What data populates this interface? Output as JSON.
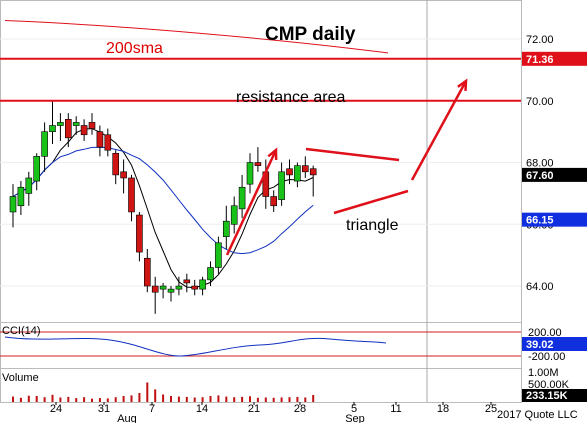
{
  "chart_data": {
    "type": "candlestick",
    "title": "CMP daily",
    "price_ylim": [
      62.9,
      73.2
    ],
    "price_ticks": [
      "72.00",
      "70.00",
      "68.00",
      "66.00",
      "64.00"
    ],
    "annotations": {
      "sma_label": "200sma",
      "resistance_label": "resistance area",
      "triangle_label": "triangle"
    },
    "resistance_levels": [
      71.36,
      70.0
    ],
    "last_price_badges": [
      {
        "value": "71.36",
        "color": "#e0101a"
      },
      {
        "value": "67.60",
        "color": "#000000"
      },
      {
        "value": "66.15",
        "color": "#1030e0"
      }
    ],
    "x_labels": [
      "24",
      "31",
      "7",
      "14",
      "21",
      "28",
      "5",
      "11",
      "18",
      "25"
    ],
    "month_labels": [
      "Aug",
      "Sep"
    ],
    "candles": [
      {
        "o": 66.4,
        "h": 67.3,
        "l": 65.9,
        "c": 66.9
      },
      {
        "o": 66.6,
        "h": 67.4,
        "l": 66.3,
        "c": 67.2
      },
      {
        "o": 67.0,
        "h": 67.7,
        "l": 66.6,
        "c": 67.5
      },
      {
        "o": 67.4,
        "h": 68.3,
        "l": 67.1,
        "c": 68.2
      },
      {
        "o": 68.2,
        "h": 69.3,
        "l": 67.7,
        "c": 69.0
      },
      {
        "o": 69.0,
        "h": 70.0,
        "l": 68.6,
        "c": 69.2
      },
      {
        "o": 69.2,
        "h": 69.6,
        "l": 68.7,
        "c": 69.3
      },
      {
        "o": 69.4,
        "h": 69.6,
        "l": 68.5,
        "c": 68.8
      },
      {
        "o": 69.2,
        "h": 69.5,
        "l": 68.9,
        "c": 69.3
      },
      {
        "o": 69.2,
        "h": 69.4,
        "l": 68.7,
        "c": 68.9
      },
      {
        "o": 69.3,
        "h": 69.6,
        "l": 68.9,
        "c": 69.1
      },
      {
        "o": 69.0,
        "h": 69.2,
        "l": 68.2,
        "c": 68.5
      },
      {
        "o": 68.9,
        "h": 69.1,
        "l": 68.2,
        "c": 68.4
      },
      {
        "o": 68.3,
        "h": 68.4,
        "l": 67.3,
        "c": 67.6
      },
      {
        "o": 67.7,
        "h": 68.1,
        "l": 67.0,
        "c": 67.5
      },
      {
        "o": 67.5,
        "h": 67.6,
        "l": 66.1,
        "c": 66.4
      },
      {
        "o": 66.3,
        "h": 66.4,
        "l": 64.8,
        "c": 65.1
      },
      {
        "o": 64.9,
        "h": 65.2,
        "l": 63.8,
        "c": 64.0
      },
      {
        "o": 64.0,
        "h": 64.3,
        "l": 63.1,
        "c": 63.8
      },
      {
        "o": 63.9,
        "h": 64.1,
        "l": 63.6,
        "c": 64.0
      },
      {
        "o": 63.8,
        "h": 64.0,
        "l": 63.5,
        "c": 63.9
      },
      {
        "o": 63.9,
        "h": 64.3,
        "l": 63.7,
        "c": 64.0
      },
      {
        "o": 64.2,
        "h": 64.4,
        "l": 63.8,
        "c": 64.1
      },
      {
        "o": 64.0,
        "h": 64.2,
        "l": 63.7,
        "c": 63.9
      },
      {
        "o": 63.9,
        "h": 64.3,
        "l": 63.7,
        "c": 64.2
      },
      {
        "o": 64.2,
        "h": 64.8,
        "l": 64.0,
        "c": 64.6
      },
      {
        "o": 64.6,
        "h": 65.6,
        "l": 64.4,
        "c": 65.4
      },
      {
        "o": 65.6,
        "h": 66.6,
        "l": 65.2,
        "c": 66.1
      },
      {
        "o": 66.0,
        "h": 66.9,
        "l": 65.7,
        "c": 66.6
      },
      {
        "o": 66.5,
        "h": 67.6,
        "l": 66.2,
        "c": 67.2
      },
      {
        "o": 67.3,
        "h": 68.3,
        "l": 67.0,
        "c": 68.0
      },
      {
        "o": 68.0,
        "h": 68.5,
        "l": 67.7,
        "c": 67.9
      },
      {
        "o": 67.7,
        "h": 68.1,
        "l": 66.5,
        "c": 66.9
      },
      {
        "o": 66.9,
        "h": 67.1,
        "l": 66.4,
        "c": 66.6
      },
      {
        "o": 66.8,
        "h": 68.0,
        "l": 66.6,
        "c": 67.7
      },
      {
        "o": 67.8,
        "h": 68.1,
        "l": 67.3,
        "c": 67.6
      },
      {
        "o": 67.4,
        "h": 68.0,
        "l": 67.2,
        "c": 67.9
      },
      {
        "o": 67.9,
        "h": 68.2,
        "l": 67.5,
        "c": 67.7
      },
      {
        "o": 67.8,
        "h": 67.9,
        "l": 66.9,
        "c": 67.6
      }
    ],
    "cci": {
      "label": "CCI(14)",
      "ticks": [
        "200.00",
        "-200.00"
      ],
      "value_badge": "39.02"
    },
    "volume": {
      "label": "Volume",
      "ticks": [
        "1.00M",
        "500.00K"
      ],
      "value_badge": "233.15K",
      "values": [
        180,
        140,
        210,
        200,
        160,
        240,
        150,
        170,
        130,
        160,
        110,
        130,
        120,
        160,
        200,
        220,
        300,
        650,
        420,
        250,
        200,
        180,
        170,
        150,
        160,
        200,
        220,
        180,
        160,
        170,
        190,
        140,
        150,
        140,
        150,
        160,
        170,
        150,
        233
      ]
    },
    "copyright": "2017 Quote LLC"
  }
}
